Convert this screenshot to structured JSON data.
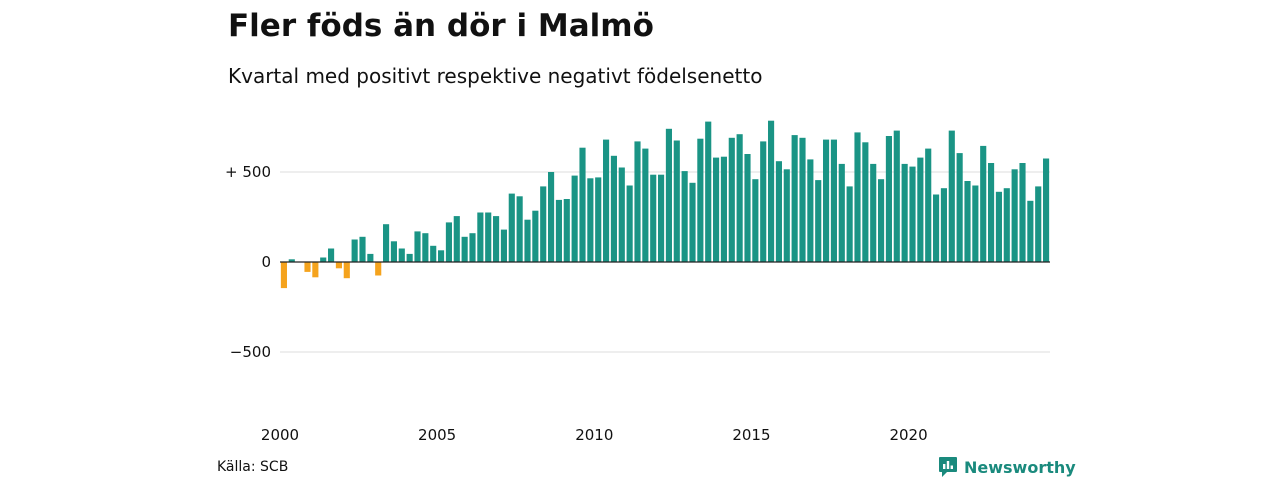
{
  "title": "Fler föds än dör i Malmö",
  "subtitle": "Kvartal med positivt respektive negativt födelsenetto",
  "source": "Källa: SCB",
  "brand": "Newsworthy",
  "colors": {
    "positive": "#1a9485",
    "negative": "#f5a31d",
    "grid": "#dddddd",
    "baseline": "#222222"
  },
  "icons": {
    "brand_logo": "bar-chart-speech-bubble-icon"
  },
  "chart_data": {
    "type": "bar",
    "x_start": "2000 Q1",
    "frequency": "quarterly",
    "values": [
      -145,
      15,
      0,
      -55,
      -85,
      25,
      75,
      -35,
      -90,
      125,
      140,
      45,
      -75,
      210,
      115,
      75,
      45,
      170,
      160,
      90,
      65,
      220,
      255,
      140,
      160,
      275,
      275,
      255,
      180,
      380,
      365,
      235,
      285,
      420,
      500,
      345,
      350,
      480,
      635,
      465,
      470,
      680,
      590,
      525,
      425,
      670,
      630,
      485,
      485,
      740,
      675,
      505,
      440,
      685,
      780,
      580,
      585,
      690,
      710,
      600,
      460,
      670,
      785,
      560,
      515,
      705,
      690,
      570,
      455,
      680,
      680,
      545,
      420,
      720,
      665,
      545,
      460,
      700,
      730,
      545,
      530,
      580,
      630,
      375,
      410,
      730,
      605,
      450,
      425,
      645,
      550,
      390,
      410,
      515,
      550,
      340,
      420,
      575
    ],
    "ylim": [
      -700,
      800
    ],
    "yticks": [
      {
        "value": 500,
        "label": "+ 500"
      },
      {
        "value": 0,
        "label": "0"
      },
      {
        "value": -500,
        "label": "−500"
      }
    ],
    "xticks": [
      {
        "year": 2000,
        "label": "2000"
      },
      {
        "year": 2005,
        "label": "2005"
      },
      {
        "year": 2010,
        "label": "2010"
      },
      {
        "year": 2015,
        "label": "2015"
      },
      {
        "year": 2020,
        "label": "2020"
      }
    ],
    "grid": true
  }
}
